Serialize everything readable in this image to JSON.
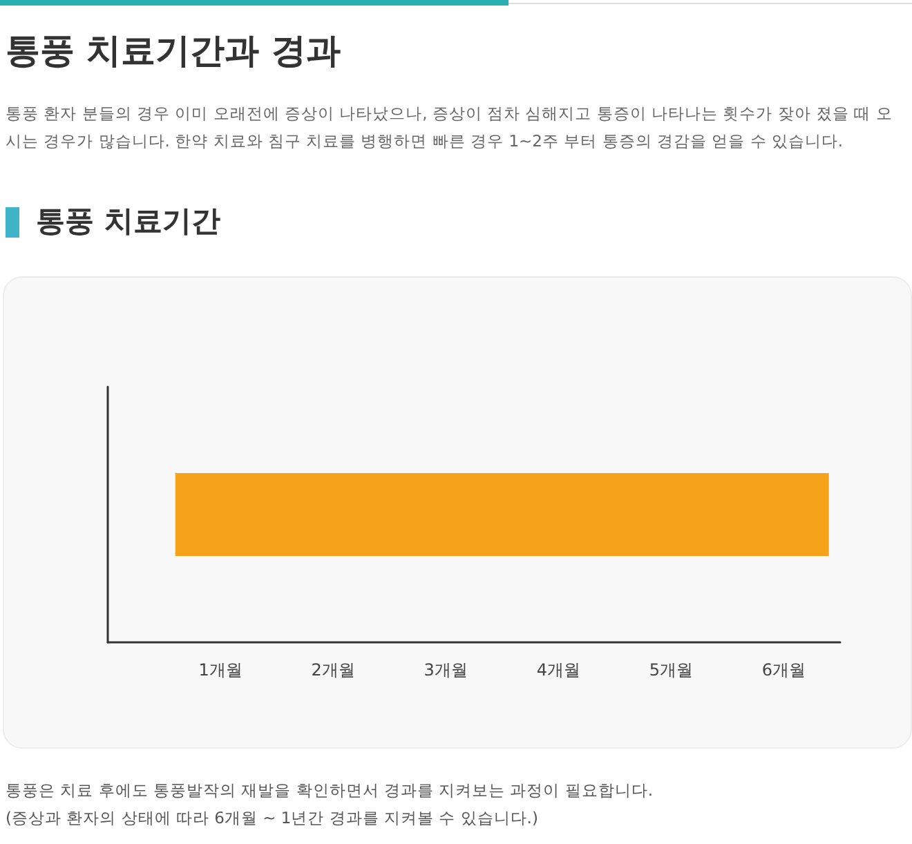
{
  "chart_data": {
    "type": "bar",
    "orientation": "horizontal",
    "title": "통풍 치료기간과 경과",
    "subtitle": "통풍 치료기간",
    "annotations": [
      "통풍 환자 분들의 경우 이미 오래전에 증상이 나타났으나, 증상이 점차 심해지고 통증이 나타나는 횟수가 잦아 졌을 때 오시는 경우가 많습니다.  한약 치료와 침구 치료를 병행하면 빠른 경우 1~2주 부터 통증의 경감을 얻을 수 있습니다.",
      "통풍은 치료 후에도 통풍발작의 재발을 확인하면서 경과를 지켜보는 과정이 필요합니다.",
      "(증상과 환자의 상태에 따라 6개월 ~ 1년간 경과를 지켜볼 수 있습니다.)"
    ],
    "categories": [
      null
    ],
    "values": [
      5.8
    ],
    "base": [
      0.6
    ],
    "color": "#f7a21b",
    "xlim": [
      0,
      6.5
    ],
    "xticks": [
      {
        "value": 1,
        "label": "1개월"
      },
      {
        "value": 2,
        "label": "2개월"
      },
      {
        "value": 3,
        "label": "3개월"
      },
      {
        "value": 4,
        "label": "4개월"
      },
      {
        "value": 5,
        "label": "5개월"
      },
      {
        "value": 6,
        "label": "6개월"
      }
    ],
    "data_labels": false
  }
}
